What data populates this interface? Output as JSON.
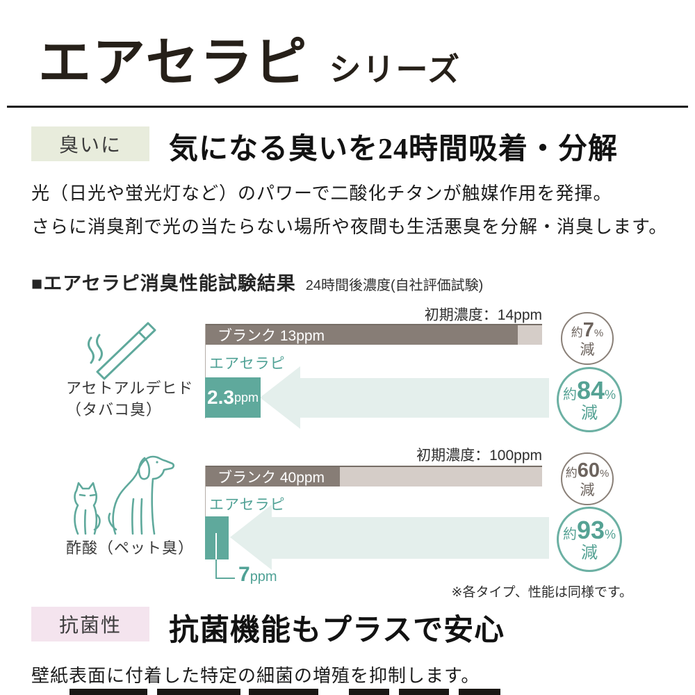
{
  "header": {
    "title": "エアセラピ",
    "series": "シリーズ"
  },
  "odor_section": {
    "badge": "臭いに",
    "heading": "気になる臭いを24時間吸着・分解",
    "body_line1": "光（日光や蛍光灯など）のパワーで二酸化チタンが触媒作用を発揮。",
    "body_line2": "さらに消臭剤で光の当たらない場所や夜間も生活悪臭を分解・消臭します。"
  },
  "results_section": {
    "title": "■エアセラピ消臭性能試験結果",
    "subtitle": "24時間後濃度(自社評価試験)",
    "footnote": "※各タイプ、性能は同様です。"
  },
  "chart_data": [
    {
      "type": "bar",
      "category": "アセトアルデヒド（タバコ臭）",
      "category_line1": "アセトアルデヒド",
      "category_line2": "（タバコ臭）",
      "icon": "cigarette-icon",
      "initial_label": "初期濃度：14ppm",
      "initial_ppm": 14,
      "xlim": [
        0,
        14
      ],
      "series": [
        {
          "name": "ブランク",
          "value_ppm": 13,
          "bar_label": "ブランク 13ppm",
          "reduction_prefix": "約",
          "reduction_value": "7",
          "reduction_unit": "%",
          "reduction_suffix": "減"
        },
        {
          "name": "エアセラピ",
          "value_ppm": 2.3,
          "value_text": "2.3",
          "unit": "ppm",
          "reduction_prefix": "約",
          "reduction_value": "84",
          "reduction_unit": "%",
          "reduction_suffix": "減"
        }
      ]
    },
    {
      "type": "bar",
      "category": "酢酸（ペット臭）",
      "category_line1": "酢酸（ペット臭）",
      "icon": "dog-cat-icon",
      "initial_label": "初期濃度：100ppm",
      "initial_ppm": 100,
      "xlim": [
        0,
        100
      ],
      "series": [
        {
          "name": "ブランク",
          "value_ppm": 40,
          "bar_label": "ブランク 40ppm",
          "reduction_prefix": "約",
          "reduction_value": "60",
          "reduction_unit": "%",
          "reduction_suffix": "減"
        },
        {
          "name": "エアセラピ",
          "value_ppm": 7,
          "value_text": "7",
          "unit": "ppm",
          "reduction_prefix": "約",
          "reduction_value": "93",
          "reduction_unit": "%",
          "reduction_suffix": "減"
        }
      ]
    }
  ],
  "antibacterial_section": {
    "badge": "抗菌性",
    "heading": "抗菌機能もプラスで安心",
    "body": "壁紙表面に付着した特定の細菌の増殖を抑制します。"
  },
  "colors": {
    "teal": "#5fa99c",
    "teal_light": "#e4efec",
    "bar_dark": "#877d76",
    "bar_light": "#d5cdc8",
    "badge_green": "#e8ecdc",
    "badge_pink": "#f4e4ee",
    "circle_gray": "#8a8078"
  }
}
